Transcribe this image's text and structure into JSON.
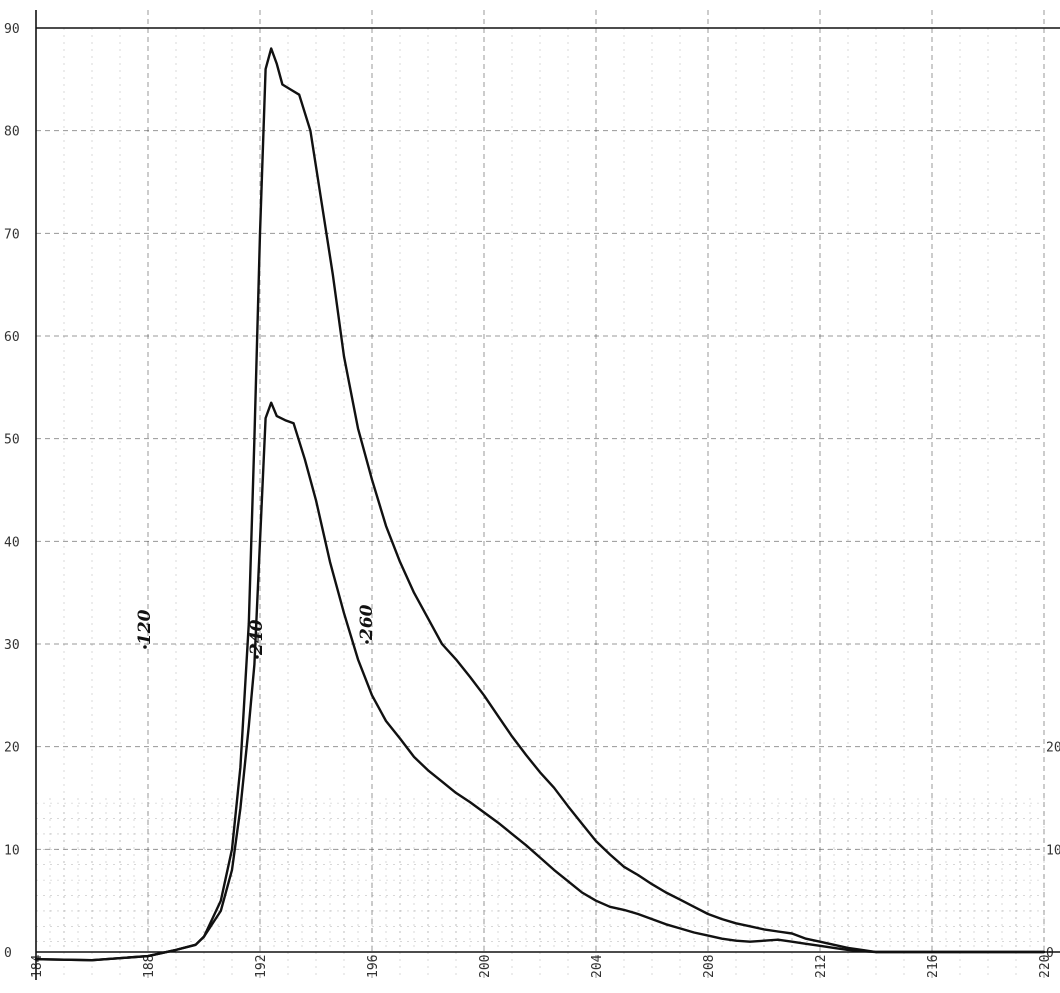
{
  "chart_data": {
    "type": "line",
    "title": "",
    "xlabel": "",
    "ylabel": "",
    "xlim": [
      184,
      220
    ],
    "ylim": [
      0,
      90
    ],
    "y_ticks": [
      "0",
      "10",
      "20",
      "30",
      "40",
      "50",
      "60",
      "70",
      "80",
      "90"
    ],
    "x_ticks": [
      "184",
      "188",
      "192",
      "196",
      "200",
      "204",
      "208",
      "212",
      "216",
      "220"
    ],
    "right_ticks": [
      "0",
      "10",
      "20"
    ],
    "grid": true,
    "annotations": [
      "120",
      "240",
      "260"
    ],
    "series": [
      {
        "values": [
          [
            184,
            -0.7
          ],
          [
            186,
            -0.8
          ],
          [
            188,
            -0.4
          ],
          [
            189,
            0.2
          ],
          [
            189.7,
            0.7
          ],
          [
            190,
            1.5
          ],
          [
            190.6,
            4
          ],
          [
            191,
            8
          ],
          [
            191.3,
            14
          ],
          [
            191.6,
            22
          ],
          [
            191.8,
            28
          ],
          [
            192.0,
            40
          ],
          [
            192.2,
            52
          ],
          [
            192.4,
            53.5
          ],
          [
            192.6,
            52.2
          ],
          [
            192.9,
            51.8
          ],
          [
            193.2,
            51.5
          ],
          [
            193.6,
            48
          ],
          [
            194,
            44
          ],
          [
            194.5,
            38
          ],
          [
            195,
            33
          ],
          [
            195.5,
            28.5
          ],
          [
            196,
            25
          ],
          [
            196.5,
            22.5
          ],
          [
            197,
            20.8
          ],
          [
            197.5,
            19
          ],
          [
            198,
            17.7
          ],
          [
            198.5,
            16.6
          ],
          [
            199,
            15.5
          ],
          [
            199.5,
            14.6
          ],
          [
            200,
            13.6
          ],
          [
            200.5,
            12.6
          ],
          [
            201,
            11.5
          ],
          [
            201.5,
            10.4
          ],
          [
            202,
            9.2
          ],
          [
            202.5,
            8.0
          ],
          [
            203,
            6.9
          ],
          [
            203.5,
            5.8
          ],
          [
            204,
            5.0
          ],
          [
            204.5,
            4.4
          ],
          [
            205,
            4.1
          ],
          [
            205.5,
            3.7
          ],
          [
            206,
            3.2
          ],
          [
            206.5,
            2.7
          ],
          [
            207,
            2.3
          ],
          [
            207.5,
            1.9
          ],
          [
            208,
            1.6
          ],
          [
            208.5,
            1.3
          ],
          [
            209,
            1.1
          ],
          [
            209.5,
            1.0
          ],
          [
            210,
            1.1
          ],
          [
            210.5,
            1.2
          ],
          [
            211,
            1.0
          ],
          [
            211.5,
            0.8
          ],
          [
            212,
            0.6
          ],
          [
            212.5,
            0.4
          ],
          [
            213,
            0.2
          ],
          [
            213.5,
            0.1
          ],
          [
            214,
            0.0
          ],
          [
            220,
            0.0
          ]
        ]
      },
      {
        "values": [
          [
            184,
            -0.7
          ],
          [
            186,
            -0.8
          ],
          [
            188,
            -0.4
          ],
          [
            189,
            0.2
          ],
          [
            189.7,
            0.7
          ],
          [
            190,
            1.5
          ],
          [
            190.6,
            5
          ],
          [
            191,
            10
          ],
          [
            191.3,
            18
          ],
          [
            191.6,
            32
          ],
          [
            191.8,
            50
          ],
          [
            192.0,
            70
          ],
          [
            192.2,
            86
          ],
          [
            192.4,
            88
          ],
          [
            192.6,
            86.5
          ],
          [
            192.8,
            84.5
          ],
          [
            193.1,
            84.0
          ],
          [
            193.4,
            83.5
          ],
          [
            193.8,
            80
          ],
          [
            194.2,
            73
          ],
          [
            194.6,
            66
          ],
          [
            195,
            58
          ],
          [
            195.5,
            51
          ],
          [
            196,
            46
          ],
          [
            196.5,
            41.5
          ],
          [
            197,
            38
          ],
          [
            197.5,
            35
          ],
          [
            198,
            32.5
          ],
          [
            198.5,
            30
          ],
          [
            199,
            28.5
          ],
          [
            199.5,
            26.8
          ],
          [
            200,
            25
          ],
          [
            200.5,
            23
          ],
          [
            201,
            21
          ],
          [
            201.5,
            19.2
          ],
          [
            202,
            17.5
          ],
          [
            202.5,
            16
          ],
          [
            203,
            14.2
          ],
          [
            203.5,
            12.5
          ],
          [
            204,
            10.8
          ],
          [
            204.5,
            9.5
          ],
          [
            205,
            8.3
          ],
          [
            205.5,
            7.5
          ],
          [
            206,
            6.6
          ],
          [
            206.5,
            5.8
          ],
          [
            207,
            5.1
          ],
          [
            207.5,
            4.4
          ],
          [
            208,
            3.7
          ],
          [
            208.5,
            3.2
          ],
          [
            209,
            2.8
          ],
          [
            209.5,
            2.5
          ],
          [
            210,
            2.2
          ],
          [
            210.5,
            2.0
          ],
          [
            211,
            1.8
          ],
          [
            211.5,
            1.3
          ],
          [
            212,
            1.0
          ],
          [
            212.5,
            0.7
          ],
          [
            213,
            0.4
          ],
          [
            213.5,
            0.2
          ],
          [
            214,
            0.0
          ],
          [
            220,
            0.0
          ]
        ]
      }
    ]
  }
}
